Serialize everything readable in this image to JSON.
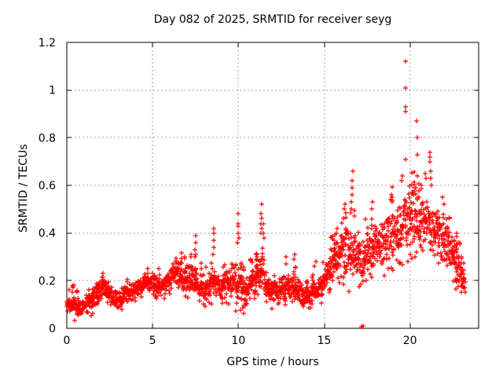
{
  "chart_data": {
    "type": "scatter",
    "title": "Day 082 of 2025, SRMTID for receiver seyg",
    "xlabel": "GPS time / hours",
    "ylabel": "SRMTID / TECUs",
    "xlim": [
      0,
      24
    ],
    "ylim": [
      0,
      1.2
    ],
    "xticks": [
      0,
      5,
      10,
      15,
      20
    ],
    "xtick_labels": [
      "0",
      "5",
      "10",
      "15",
      "20"
    ],
    "yticks": [
      0,
      0.2,
      0.4,
      0.6,
      0.8,
      1,
      1.2
    ],
    "ytick_labels": [
      "0",
      "0.2",
      "0.4",
      "0.6",
      "0.8",
      "1",
      "1.2"
    ],
    "grid": true,
    "legend": "none",
    "marker": "plus",
    "marker_color": "#ff0000",
    "grid_color": "#a6a6a6",
    "axis_color": "#000000",
    "text_color": "#000000",
    "series_name": "SRMTID",
    "x_start": 0,
    "x_end": 23.2,
    "epoch_step_hours": 0.025,
    "points_per_epoch": 2,
    "seed": 82,
    "band_envelope": [
      [
        0.0,
        0.04,
        0.13
      ],
      [
        0.3,
        0.05,
        0.16
      ],
      [
        0.7,
        0.03,
        0.12
      ],
      [
        1.1,
        0.05,
        0.14
      ],
      [
        1.5,
        0.07,
        0.17
      ],
      [
        1.9,
        0.1,
        0.2
      ],
      [
        2.2,
        0.13,
        0.23
      ],
      [
        2.6,
        0.1,
        0.18
      ],
      [
        3.0,
        0.08,
        0.16
      ],
      [
        3.4,
        0.1,
        0.19
      ],
      [
        3.8,
        0.11,
        0.2
      ],
      [
        4.2,
        0.13,
        0.21
      ],
      [
        4.7,
        0.15,
        0.23
      ],
      [
        5.1,
        0.14,
        0.24
      ],
      [
        5.5,
        0.12,
        0.21
      ],
      [
        5.9,
        0.15,
        0.25
      ],
      [
        6.3,
        0.17,
        0.28
      ],
      [
        6.7,
        0.16,
        0.28
      ],
      [
        7.2,
        0.14,
        0.27
      ],
      [
        7.7,
        0.12,
        0.24
      ],
      [
        8.1,
        0.1,
        0.22
      ],
      [
        8.5,
        0.12,
        0.29
      ],
      [
        8.9,
        0.1,
        0.22
      ],
      [
        9.4,
        0.12,
        0.27
      ],
      [
        9.9,
        0.1,
        0.32
      ],
      [
        10.3,
        0.08,
        0.22
      ],
      [
        10.7,
        0.1,
        0.26
      ],
      [
        11.0,
        0.12,
        0.26
      ],
      [
        11.3,
        0.14,
        0.38
      ],
      [
        11.7,
        0.1,
        0.22
      ],
      [
        12.2,
        0.1,
        0.2
      ],
      [
        12.7,
        0.1,
        0.24
      ],
      [
        13.2,
        0.1,
        0.26
      ],
      [
        13.8,
        0.08,
        0.17
      ],
      [
        14.3,
        0.1,
        0.21
      ],
      [
        14.8,
        0.12,
        0.22
      ],
      [
        15.2,
        0.16,
        0.3
      ],
      [
        15.6,
        0.19,
        0.36
      ],
      [
        16.0,
        0.21,
        0.42
      ],
      [
        16.4,
        0.2,
        0.46
      ],
      [
        16.8,
        0.2,
        0.42
      ],
      [
        17.2,
        0.16,
        0.36
      ],
      [
        17.6,
        0.2,
        0.44
      ],
      [
        18.0,
        0.24,
        0.48
      ],
      [
        18.4,
        0.25,
        0.46
      ],
      [
        18.8,
        0.27,
        0.5
      ],
      [
        19.2,
        0.29,
        0.53
      ],
      [
        19.6,
        0.3,
        0.58
      ],
      [
        20.0,
        0.33,
        0.62
      ],
      [
        20.4,
        0.34,
        0.6
      ],
      [
        20.8,
        0.32,
        0.58
      ],
      [
        21.2,
        0.3,
        0.58
      ],
      [
        21.6,
        0.28,
        0.5
      ],
      [
        22.0,
        0.26,
        0.46
      ],
      [
        22.4,
        0.24,
        0.42
      ],
      [
        22.8,
        0.16,
        0.34
      ],
      [
        23.2,
        0.13,
        0.24
      ]
    ],
    "outlier_points": [
      [
        0.35,
        0.17
      ],
      [
        0.4,
        0.18
      ],
      [
        7.45,
        0.3
      ],
      [
        7.47,
        0.33
      ],
      [
        7.5,
        0.36
      ],
      [
        7.52,
        0.39
      ],
      [
        7.5,
        0.31
      ],
      [
        8.54,
        0.31
      ],
      [
        8.55,
        0.34
      ],
      [
        8.56,
        0.37
      ],
      [
        8.56,
        0.4
      ],
      [
        8.57,
        0.42
      ],
      [
        9.95,
        0.36
      ],
      [
        9.97,
        0.4
      ],
      [
        9.98,
        0.44
      ],
      [
        10.0,
        0.48
      ],
      [
        10.0,
        0.43
      ],
      [
        10.03,
        0.38
      ],
      [
        11.3,
        0.4
      ],
      [
        11.32,
        0.44
      ],
      [
        11.33,
        0.48
      ],
      [
        11.35,
        0.52
      ],
      [
        11.36,
        0.46
      ],
      [
        11.38,
        0.42
      ],
      [
        11.45,
        0.4
      ],
      [
        11.47,
        0.44
      ],
      [
        11.5,
        0.38
      ],
      [
        12.78,
        0.27
      ],
      [
        12.8,
        0.3
      ],
      [
        13.25,
        0.29
      ],
      [
        13.3,
        0.31
      ],
      [
        14.45,
        0.26
      ],
      [
        14.5,
        0.28
      ],
      [
        15.7,
        0.4
      ],
      [
        15.75,
        0.42
      ],
      [
        16.1,
        0.46
      ],
      [
        16.15,
        0.5
      ],
      [
        16.2,
        0.52
      ],
      [
        16.6,
        0.5
      ],
      [
        16.6,
        0.53
      ],
      [
        16.62,
        0.56
      ],
      [
        16.63,
        0.59
      ],
      [
        16.63,
        0.62
      ],
      [
        16.65,
        0.66
      ],
      [
        17.16,
        0.005
      ],
      [
        17.25,
        0.01
      ],
      [
        17.75,
        0.5
      ],
      [
        17.8,
        0.53
      ],
      [
        18.85,
        0.54
      ],
      [
        18.9,
        0.56
      ],
      [
        19.5,
        0.62
      ],
      [
        19.55,
        0.64
      ],
      [
        19.73,
        1.12
      ],
      [
        19.74,
        1.01
      ],
      [
        19.75,
        0.93
      ],
      [
        19.74,
        0.91
      ],
      [
        19.76,
        0.71
      ],
      [
        20.4,
        0.87
      ],
      [
        20.41,
        0.8
      ],
      [
        20.43,
        0.73
      ],
      [
        20.44,
        0.64
      ],
      [
        20.9,
        0.65
      ],
      [
        20.95,
        0.63
      ],
      [
        21.15,
        0.74
      ],
      [
        21.17,
        0.72
      ],
      [
        21.18,
        0.7
      ],
      [
        21.2,
        0.66
      ],
      [
        21.22,
        0.63
      ],
      [
        21.25,
        0.6
      ],
      [
        21.9,
        0.55
      ],
      [
        22.0,
        0.52
      ]
    ]
  }
}
